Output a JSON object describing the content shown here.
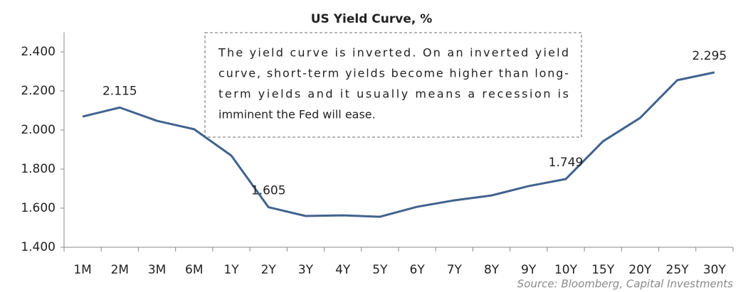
{
  "chart_data": {
    "type": "line",
    "title": "US Yield Curve, %",
    "annotation": [
      "The yield curve is inverted. On an inverted yield",
      "curve, short-term yields become higher than long-",
      "term yields and it usually means a recession is",
      "imminent the Fed will ease."
    ],
    "source": "Source: Bloomberg, Capital Investments",
    "categories": [
      "1M",
      "2M",
      "3M",
      "6M",
      "1Y",
      "2Y",
      "3Y",
      "4Y",
      "5Y",
      "6Y",
      "7Y",
      "8Y",
      "9Y",
      "10Y",
      "15Y",
      "20Y",
      "25Y",
      "30Y"
    ],
    "series": [
      {
        "name": "US Yield",
        "color": "#41628f",
        "values": [
          2.069,
          2.115,
          2.047,
          2.004,
          1.869,
          1.605,
          1.56,
          1.563,
          1.556,
          1.607,
          1.64,
          1.665,
          1.713,
          1.749,
          1.942,
          2.062,
          2.255,
          2.295
        ],
        "value_labels": [
          null,
          "2.115",
          null,
          null,
          null,
          "1.605",
          null,
          null,
          null,
          null,
          null,
          null,
          null,
          "1.749",
          null,
          null,
          null,
          "2.295"
        ]
      }
    ],
    "ylim": [
      1.4,
      2.5
    ],
    "yticks": [
      {
        "value": 1.4,
        "label": "1.400"
      },
      {
        "value": 1.6,
        "label": "1.600"
      },
      {
        "value": 1.8,
        "label": "1.800"
      },
      {
        "value": 2.0,
        "label": "2.000"
      },
      {
        "value": 2.2,
        "label": "2.200"
      },
      {
        "value": 2.4,
        "label": "2.400"
      }
    ],
    "grid": false
  }
}
